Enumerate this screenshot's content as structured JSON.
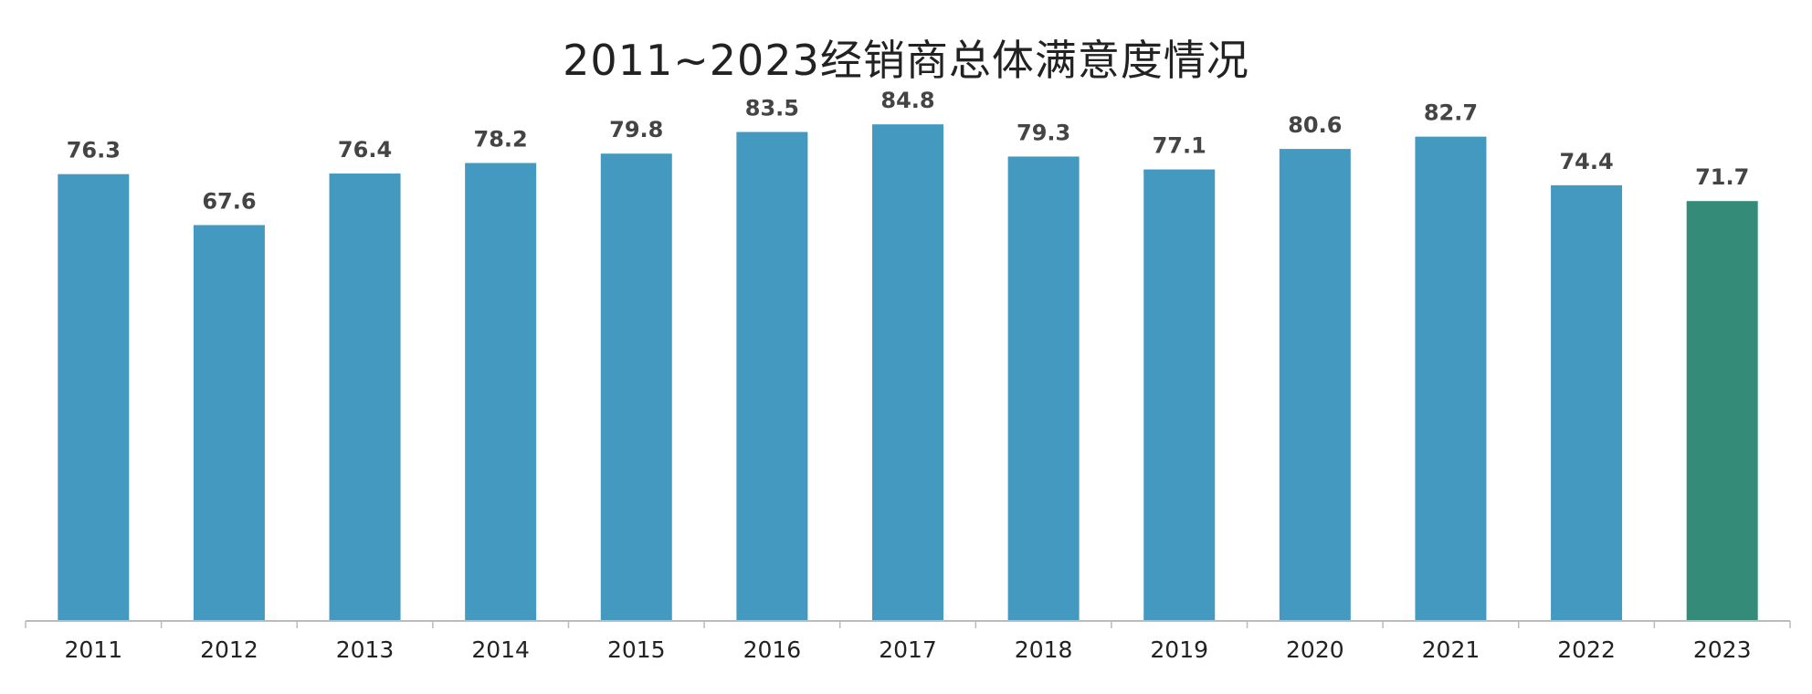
{
  "chart_data": {
    "type": "bar",
    "title": "2011~2023经销商总体满意度情况",
    "categories": [
      "2011",
      "2012",
      "2013",
      "2014",
      "2015",
      "2016",
      "2017",
      "2018",
      "2019",
      "2020",
      "2021",
      "2022",
      "2023"
    ],
    "values": [
      76.3,
      67.6,
      76.4,
      78.2,
      79.8,
      83.5,
      84.8,
      79.3,
      77.1,
      80.6,
      82.7,
      74.4,
      71.7
    ],
    "xlabel": "",
    "ylabel": "",
    "ylim": [
      0,
      92
    ],
    "grid": false,
    "legend": "none",
    "colors": {
      "bar": "#4499C0",
      "highlight": "#338B78",
      "axis": "#BBBBBB"
    },
    "highlight_category": "2023"
  }
}
